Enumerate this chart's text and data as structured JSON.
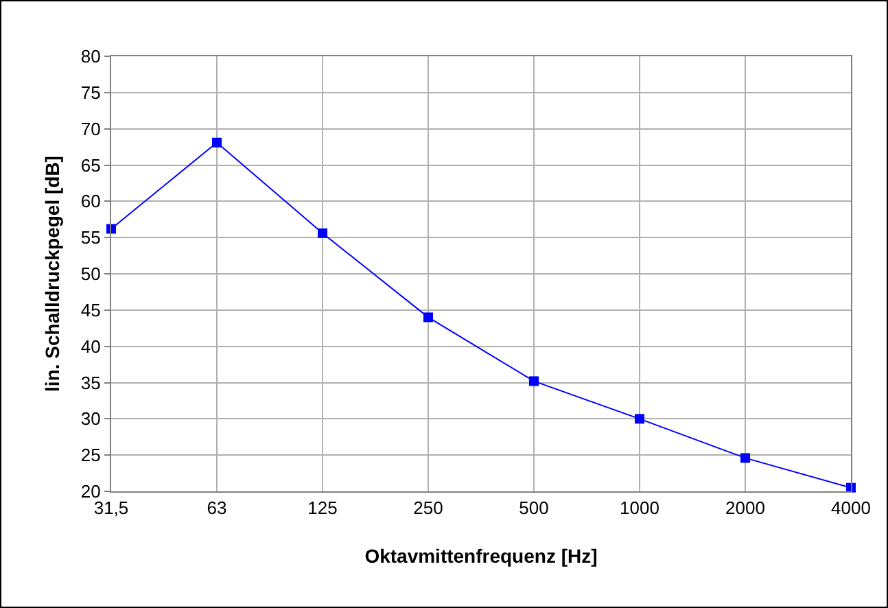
{
  "chart_data": {
    "type": "line",
    "xlabel": "Oktavmittenfrequenz [Hz]",
    "ylabel": "lin. Schalldruckpegel [dB]",
    "categories": [
      "31,5",
      "63",
      "125",
      "250",
      "500",
      "1000",
      "2000",
      "4000"
    ],
    "series": [
      {
        "color": "#0000ff",
        "values": [
          56.2,
          68.1,
          55.6,
          44,
          35.2,
          30,
          24.6,
          20.5
        ]
      }
    ],
    "ylim": [
      20,
      80
    ],
    "yticks": [
      20,
      25,
      30,
      35,
      40,
      45,
      50,
      55,
      60,
      65,
      70,
      75,
      80
    ],
    "grid": true,
    "legend": false,
    "marker": "square",
    "line_style": "solid"
  }
}
